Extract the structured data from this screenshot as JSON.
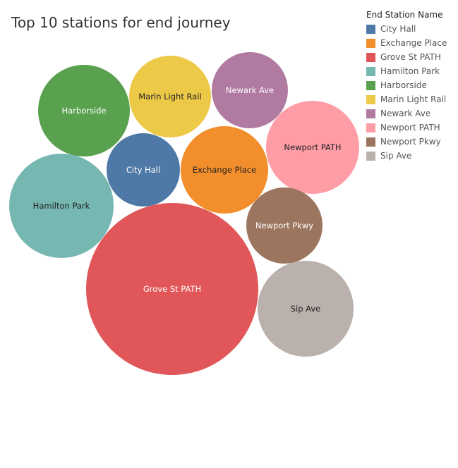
{
  "chart_data": {
    "type": "bubble",
    "title": "Top 10 stations for end journey",
    "legend_title": "End Station Name",
    "legend_position": "top-right",
    "categories": [
      "City Hall",
      "Exchange Place",
      "Grove St PATH",
      "Hamilton Park",
      "Harborside",
      "Marin Light Rail",
      "Newark Ave",
      "Newport PATH",
      "Newport Pkwy",
      "Sip Ave"
    ],
    "colors": [
      "#4e79a7",
      "#f28e2b",
      "#e15759",
      "#76b7b2",
      "#59a14f",
      "#edc948",
      "#b07aa1",
      "#ff9da7",
      "#9c755f",
      "#bab0ac"
    ],
    "label_colors": [
      "#ffffff",
      "#222222",
      "#ffffff",
      "#222222",
      "#ffffff",
      "#222222",
      "#ffffff",
      "#222222",
      "#ffffff",
      "#222222"
    ],
    "relative_size": [
      0.19,
      0.27,
      1.0,
      0.37,
      0.28,
      0.22,
      0.2,
      0.29,
      0.19,
      0.31
    ]
  }
}
